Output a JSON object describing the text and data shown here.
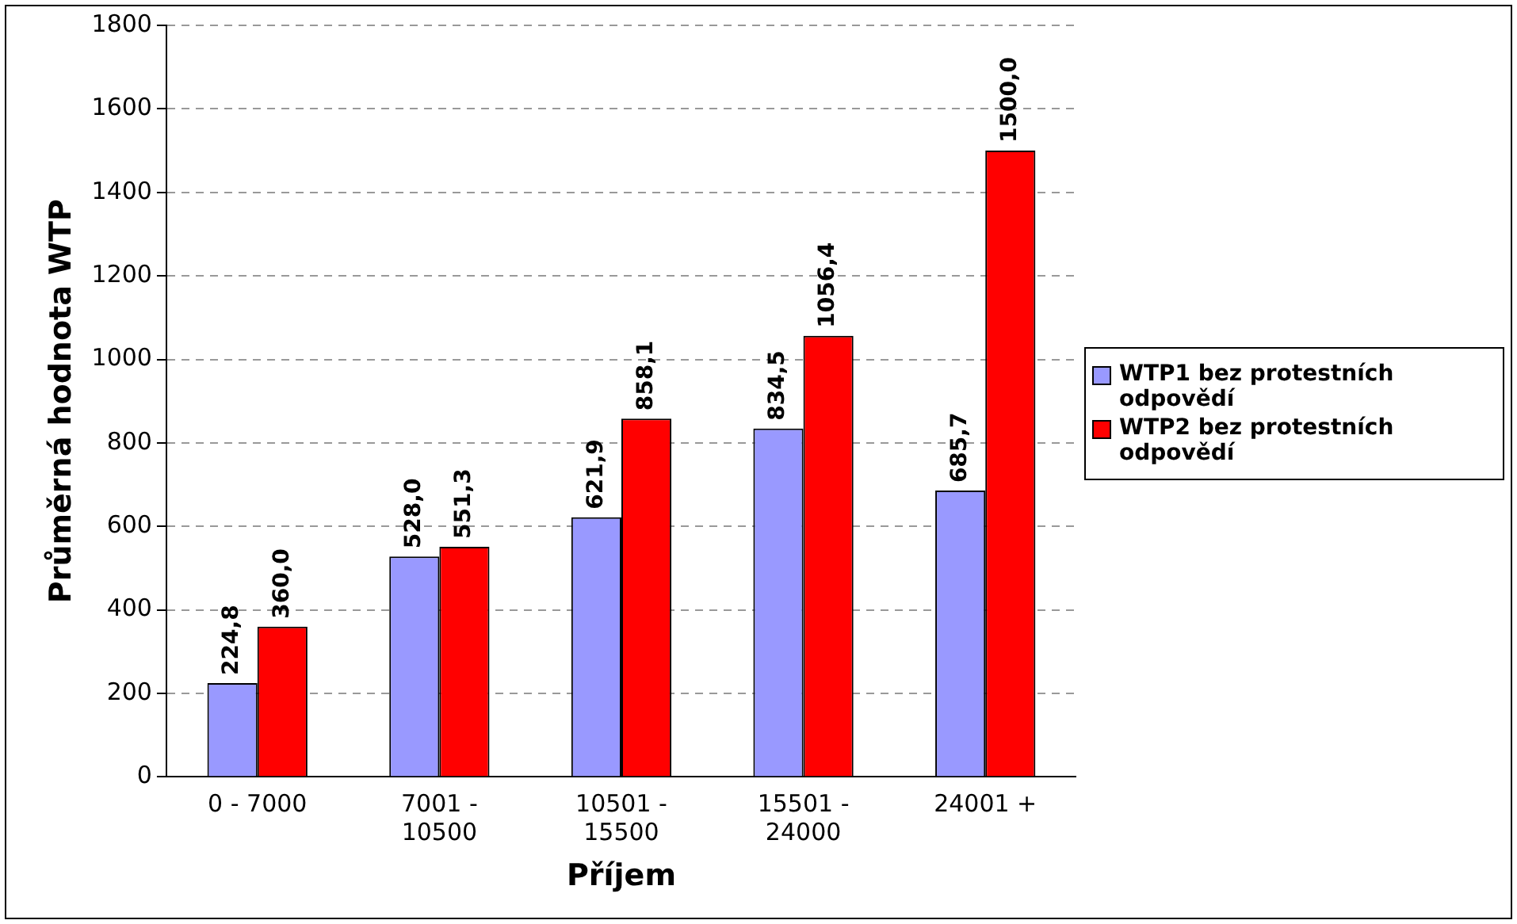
{
  "chart_data": {
    "type": "bar",
    "xlabel": "Příjem",
    "ylabel": "Průměrná hodnota WTP",
    "categories": [
      "0 - 7000",
      "7001 - 10500",
      "10501 - 15500",
      "15501 - 24000",
      "24001 +"
    ],
    "series": [
      {
        "name": "WTP1 bez protestních odpovědí",
        "color": "#9999ff",
        "values": [
          224.8,
          528.0,
          621.9,
          834.5,
          685.7
        ],
        "value_labels": [
          "224,8",
          "528,0",
          "621,9",
          "834,5",
          "685,7"
        ]
      },
      {
        "name": "WTP2 bez protestních odpovědí",
        "color": "#ff0000",
        "values": [
          360.0,
          551.3,
          858.1,
          1056.4,
          1500.0
        ],
        "value_labels": [
          "360,0",
          "551,3",
          "858,1",
          "1056,4",
          "1500,0"
        ]
      }
    ],
    "ylim": [
      0,
      1800
    ],
    "yticks": [
      0,
      200,
      400,
      600,
      800,
      1000,
      1200,
      1400,
      1600,
      1800
    ],
    "grid": "y",
    "legend": "right"
  }
}
